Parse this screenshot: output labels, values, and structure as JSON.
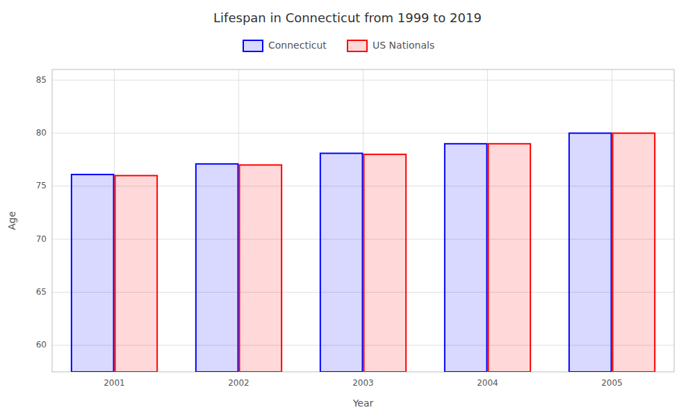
{
  "chart_data": {
    "type": "bar",
    "title": "Lifespan in Connecticut from 1999 to 2019",
    "x_label": "Year",
    "y_label": "Age",
    "categories": [
      "2001",
      "2002",
      "2003",
      "2004",
      "2005"
    ],
    "series": [
      {
        "name": "Connecticut",
        "color": "#0000ff",
        "values": [
          76.1,
          77.1,
          78.1,
          79.0,
          80.0
        ]
      },
      {
        "name": "US Nationals",
        "color": "#ff0000",
        "values": [
          76.0,
          77.0,
          78.0,
          79.0,
          80.0
        ]
      }
    ],
    "ylim": [
      57.5,
      86
    ],
    "yticks": [
      60,
      65,
      70,
      75,
      80,
      85
    ],
    "grid": true,
    "legend": "top"
  }
}
